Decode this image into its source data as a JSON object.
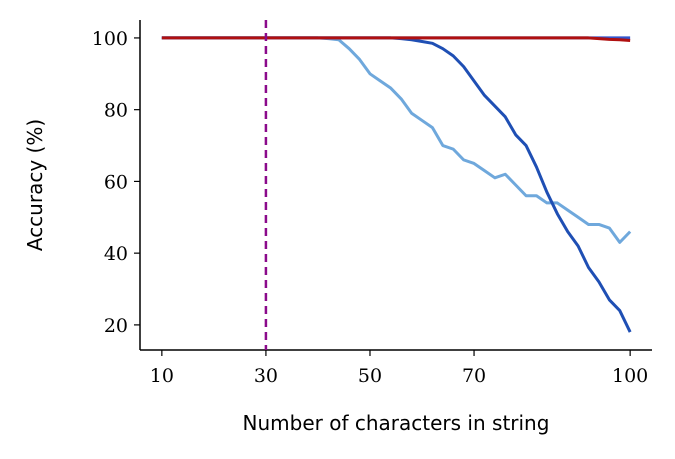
{
  "chart_data": {
    "type": "line",
    "xlabel": "Number of characters in string",
    "ylabel": "Accuracy (%)",
    "x": [
      10,
      12,
      14,
      16,
      18,
      20,
      22,
      24,
      26,
      28,
      30,
      32,
      34,
      36,
      38,
      40,
      42,
      44,
      46,
      48,
      50,
      52,
      54,
      56,
      58,
      60,
      62,
      64,
      66,
      68,
      70,
      72,
      74,
      76,
      78,
      80,
      82,
      84,
      86,
      88,
      90,
      92,
      94,
      96,
      98,
      100
    ],
    "series": [
      {
        "color": "#6fa8dc",
        "values": [
          100,
          100,
          100,
          100,
          100,
          100,
          100,
          100,
          100,
          100,
          100,
          100,
          100,
          100,
          100,
          100,
          99.8,
          99.5,
          97,
          94,
          90,
          88,
          86,
          83,
          79,
          77,
          75,
          70,
          69,
          66,
          65,
          63,
          61,
          62,
          59,
          56,
          56,
          54,
          54,
          52,
          50,
          48,
          48,
          47,
          43,
          46
        ]
      },
      {
        "color": "#1f4fb4",
        "values": [
          100,
          100,
          100,
          100,
          100,
          100,
          100,
          100,
          100,
          100,
          100,
          100,
          100,
          100,
          100,
          100,
          100,
          100,
          100,
          100,
          100,
          100,
          100,
          99.8,
          99.5,
          99,
          98.5,
          97,
          95,
          92,
          88,
          84,
          81,
          78,
          73,
          70,
          64,
          57,
          51,
          46,
          42,
          36,
          32,
          27,
          24,
          18
        ]
      },
      {
        "color": "#3355cc",
        "values": [
          100,
          100,
          100,
          100,
          100,
          100,
          100,
          100,
          100,
          100,
          100,
          100,
          100,
          100,
          100,
          100,
          100,
          100,
          100,
          100,
          100,
          100,
          100,
          100,
          100,
          100,
          100,
          100,
          100,
          100,
          100,
          100,
          100,
          100,
          100,
          100,
          100,
          100,
          100,
          100,
          100,
          100,
          100,
          100,
          100,
          100
        ]
      },
      {
        "color": "#b01010",
        "values": [
          100,
          100,
          100,
          100,
          100,
          100,
          100,
          100,
          100,
          100,
          100,
          100,
          100,
          100,
          100,
          100,
          100,
          100,
          100,
          100,
          100,
          100,
          100,
          100,
          100,
          100,
          100,
          100,
          100,
          100,
          100,
          100,
          100,
          100,
          100,
          100,
          100,
          100,
          100,
          100,
          100,
          100,
          99.8,
          99.6,
          99.5,
          99.3
        ]
      }
    ],
    "vline": {
      "value": 30,
      "color": "#8b0a8b"
    },
    "xlim": [
      5.8,
      104.2
    ],
    "ylim": [
      13,
      105
    ],
    "xticks": [
      10,
      30,
      50,
      70,
      100
    ],
    "yticks": [
      20,
      40,
      60,
      80,
      100
    ]
  }
}
